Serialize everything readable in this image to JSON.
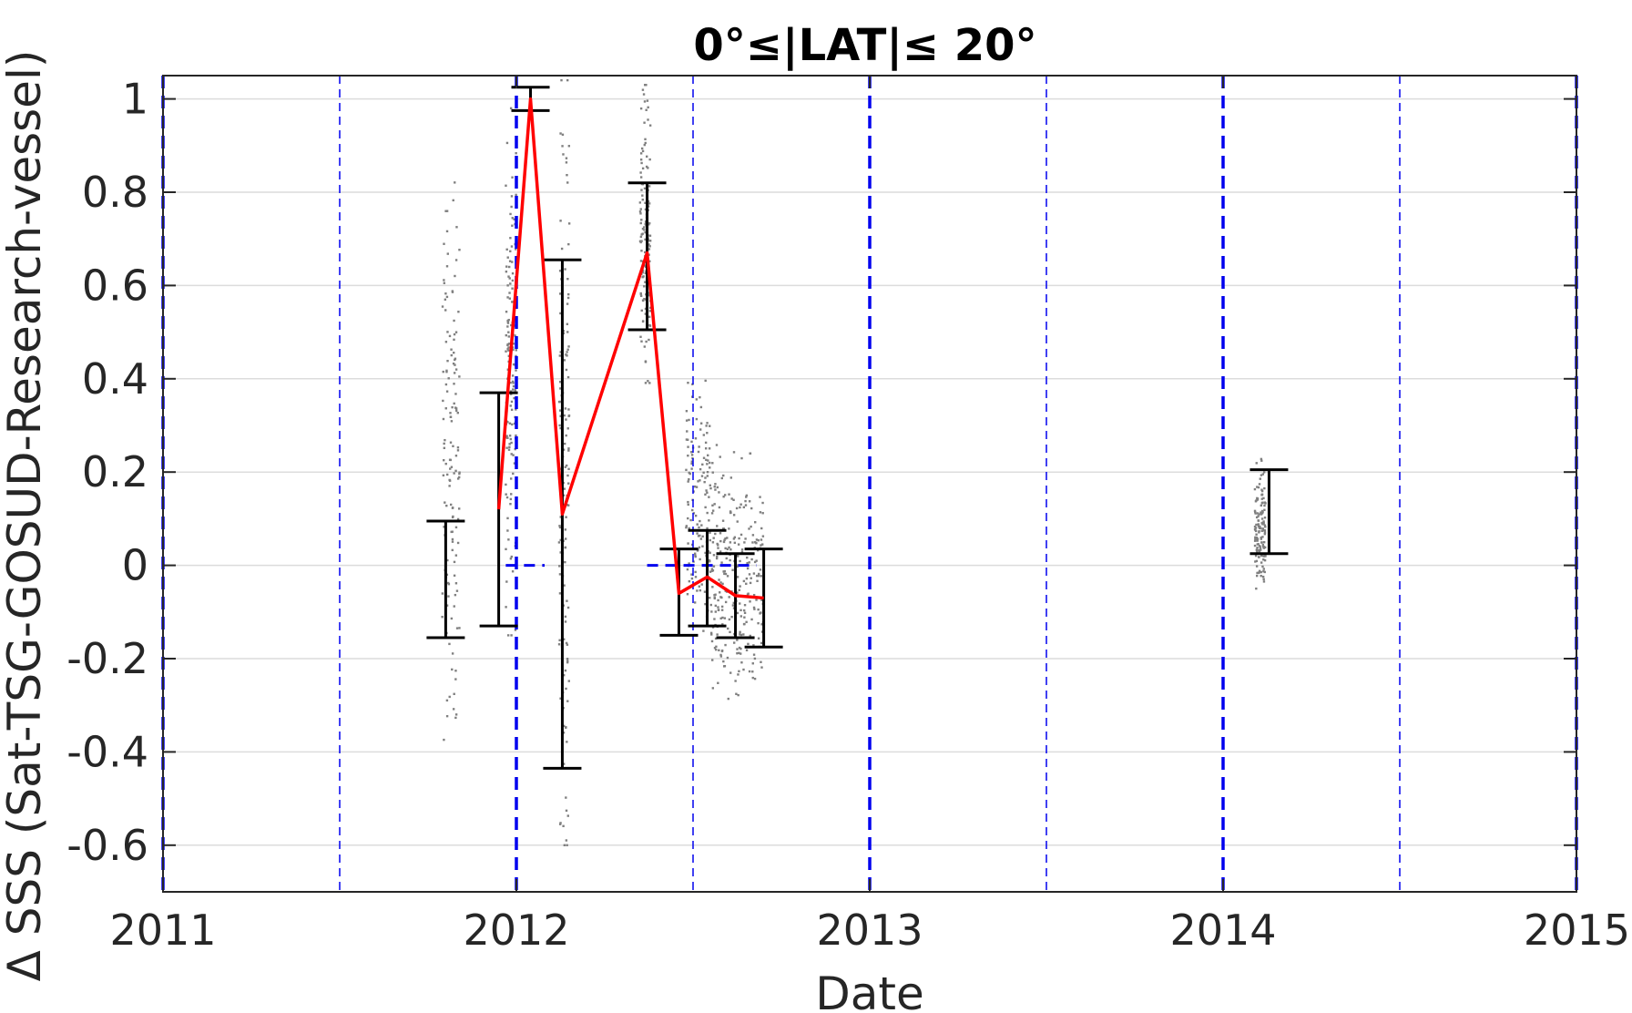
{
  "chart_data": {
    "type": "scatter",
    "title": "0°≤|LAT|≤ 20°",
    "xlabel": "Date",
    "ylabel": "Δ SSS (Sat-TSG-GOSUD-Research-vessel)",
    "xlim": [
      2011,
      2015
    ],
    "ylim": [
      -0.7,
      1.05
    ],
    "x_ticks": [
      2011,
      2012,
      2013,
      2014,
      2015
    ],
    "x_tick_labels": [
      "2011",
      "2012",
      "2013",
      "2014",
      "2015"
    ],
    "y_ticks": [
      1,
      0.8,
      0.6,
      0.4,
      0.2,
      0,
      -0.2,
      -0.4,
      -0.6
    ],
    "y_tick_labels": [
      "1",
      "0.8",
      "0.6",
      "0.4",
      "0.2",
      "0",
      "-0.2",
      "-0.4",
      "-0.6"
    ],
    "grid": "horizontal",
    "colors": {
      "scatter": "#808080",
      "mean_line": "#ff0000",
      "error_bars": "#000000",
      "year_lines": "#0000ee",
      "zero_line": "#0000ee",
      "grid": "#dcdcdc"
    },
    "year_lines": [
      2011,
      2012,
      2013,
      2014,
      2015
    ],
    "half_year_lines": [
      2011.5,
      2012.5,
      2013.5,
      2014.5
    ],
    "scatter_clusters": [
      {
        "x": [
          2011.79,
          2011.84
        ],
        "y": [
          -0.39,
          0.84
        ]
      },
      {
        "x": [
          2011.97,
          2012.0
        ],
        "y": [
          -0.15,
          0.98
        ]
      },
      {
        "x": [
          2012.12,
          2012.15
        ],
        "y": [
          -0.6,
          1.04
        ]
      },
      {
        "x": [
          2012.35,
          2012.38
        ],
        "y": [
          0.37,
          1.03
        ]
      },
      {
        "x": [
          2012.48,
          2012.55
        ],
        "y": [
          -0.2,
          0.4
        ]
      },
      {
        "x": [
          2012.55,
          2012.62
        ],
        "y": [
          -0.32,
          0.28
        ]
      },
      {
        "x": [
          2012.62,
          2012.7
        ],
        "y": [
          -0.32,
          0.24
        ]
      },
      {
        "x": [
          2014.09,
          2014.12
        ],
        "y": [
          -0.06,
          0.23
        ]
      }
    ],
    "error_bars": [
      {
        "x": 2011.8,
        "low": -0.155,
        "high": 0.095
      },
      {
        "x": 2011.95,
        "low": -0.13,
        "high": 0.37
      },
      {
        "x": 2012.04,
        "low": 0.975,
        "high": 1.025
      },
      {
        "x": 2012.13,
        "low": -0.435,
        "high": 0.655
      },
      {
        "x": 2012.37,
        "low": 0.505,
        "high": 0.82
      },
      {
        "x": 2012.46,
        "low": -0.15,
        "high": 0.035
      },
      {
        "x": 2012.54,
        "low": -0.13,
        "high": 0.075
      },
      {
        "x": 2012.62,
        "low": -0.155,
        "high": 0.025
      },
      {
        "x": 2012.7,
        "low": -0.175,
        "high": 0.035
      },
      {
        "x": 2014.13,
        "low": 0.025,
        "high": 0.205
      }
    ],
    "mean_line": {
      "x": [
        2011.95,
        2012.04,
        2012.13,
        2012.37,
        2012.46,
        2012.54,
        2012.62,
        2012.7
      ],
      "y": [
        0.12,
        1.0,
        0.11,
        0.67,
        -0.06,
        -0.025,
        -0.065,
        -0.07
      ]
    },
    "zero_segments": [
      {
        "x": [
          2011.97,
          2012.08
        ]
      },
      {
        "x": [
          2012.37,
          2012.68
        ]
      }
    ]
  }
}
